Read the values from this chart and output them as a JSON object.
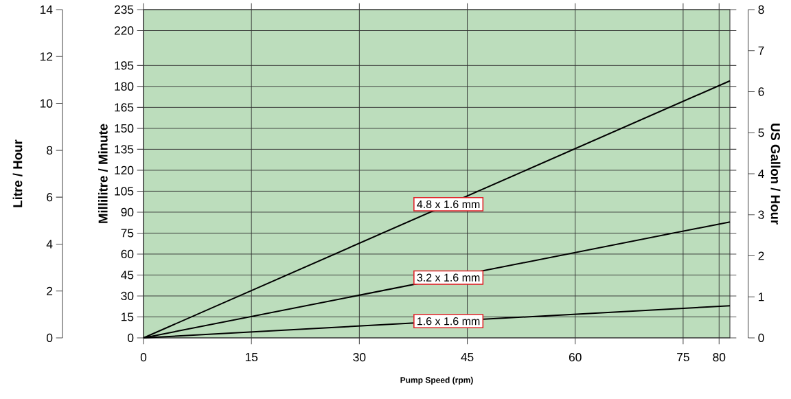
{
  "chart_data": {
    "type": "line",
    "xlabel": "Pump Speed (rpm)",
    "ylabel": "Millilitre / Minute",
    "y2label": "US Gallon / Hour",
    "y3label": "Litre / Hour",
    "x": [
      0,
      81.5
    ],
    "series": [
      {
        "name": "4.8 x 1.6 mm",
        "color": "#000000",
        "values": [
          0,
          184
        ]
      },
      {
        "name": "3.2 x 1.6 mm",
        "color": "#000000",
        "values": [
          0,
          83
        ]
      },
      {
        "name": "1.6 x 1.6 mm",
        "color": "#000000",
        "values": [
          0,
          23
        ]
      }
    ],
    "xlim": [
      0,
      81.5
    ],
    "xticks": [
      0,
      15,
      30,
      45,
      60,
      75,
      80
    ],
    "ylim": [
      0,
      235
    ],
    "yticks": [
      0,
      15,
      30,
      45,
      60,
      75,
      90,
      105,
      120,
      135,
      150,
      165,
      180,
      195,
      220,
      235
    ],
    "y2lim": [
      0,
      8
    ],
    "y2ticks": [
      0,
      1,
      2,
      3,
      4,
      5,
      6,
      7,
      8
    ],
    "y3lim": [
      0,
      14
    ],
    "y3ticks": [
      0,
      2,
      4,
      6,
      8,
      10,
      12,
      14
    ],
    "grid": true
  }
}
